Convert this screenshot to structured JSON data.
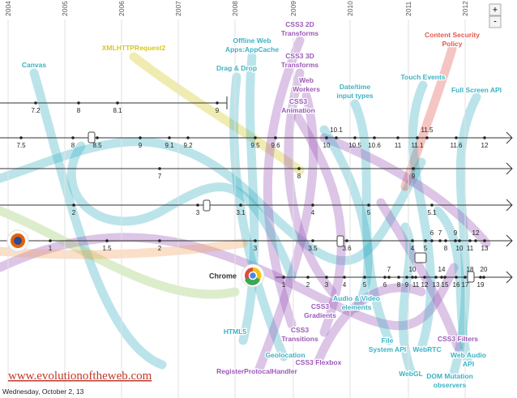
{
  "years": [
    "2004",
    "2005",
    "2006",
    "2007",
    "2008",
    "2009",
    "2010",
    "2011",
    "2012"
  ],
  "zoom": {
    "in": "+",
    "out": "-"
  },
  "features": [
    {
      "lines": [
        "Canvas"
      ]
    },
    {
      "lines": [
        "XMLHTTPRequest2"
      ]
    },
    {
      "lines": [
        "Offline Web",
        "Apps:AppCache"
      ]
    },
    {
      "lines": [
        "CSS3 2D",
        "Transforms"
      ]
    },
    {
      "lines": [
        "CSS3 3D",
        "Transforms"
      ]
    },
    {
      "lines": [
        "Drag & Drop"
      ]
    },
    {
      "lines": [
        "Web",
        "Workers"
      ]
    },
    {
      "lines": [
        "CSS3",
        "Animation"
      ]
    },
    {
      "lines": [
        "Date/time",
        "input types"
      ]
    },
    {
      "lines": [
        "Content Security",
        "Policy"
      ]
    },
    {
      "lines": [
        "Touch Events"
      ]
    },
    {
      "lines": [
        "Full Screen API"
      ]
    },
    {
      "lines": [
        "HTML5"
      ]
    },
    {
      "lines": [
        "Geolocation"
      ]
    },
    {
      "lines": [
        "RegisterProtocalHandler"
      ]
    },
    {
      "lines": [
        "CSS3",
        "Transitions"
      ]
    },
    {
      "lines": [
        "CSS3",
        "Gradients"
      ]
    },
    {
      "lines": [
        "CSS3 Flexbox"
      ]
    },
    {
      "lines": [
        "Audio & Video",
        "elements"
      ]
    },
    {
      "lines": [
        "File",
        "System API"
      ]
    },
    {
      "lines": [
        "WebGL"
      ]
    },
    {
      "lines": [
        "WebRTC"
      ]
    },
    {
      "lines": [
        "DOM Mutation",
        "observers"
      ]
    },
    {
      "lines": [
        "CSS3 Filters"
      ]
    },
    {
      "lines": [
        "Web Audio",
        "API"
      ]
    }
  ],
  "tracks": [
    {
      "versions": [
        "7.2",
        "8",
        "8.1",
        "9"
      ]
    },
    {
      "versions": [
        "7.5",
        "8",
        "8.5",
        "9",
        "9.1",
        "9.2",
        "9.5",
        "9.6",
        "10",
        "10.1",
        "10.5",
        "10.6",
        "11",
        "11.1",
        "11.5",
        "11.6",
        "12"
      ]
    },
    {
      "versions": [
        "7",
        "8",
        "9"
      ]
    },
    {
      "versions": [
        "2",
        "3",
        "3.1",
        "4",
        "5",
        "5.1"
      ]
    },
    {
      "versions": [
        "1",
        "1.5",
        "2",
        "3",
        "3.5",
        "3.6",
        "4",
        "5",
        "6",
        "7",
        "8",
        "9",
        "10",
        "11",
        "12",
        "13"
      ]
    },
    {
      "versions": [
        "1",
        "2",
        "3",
        "4",
        "5",
        "6",
        "7",
        "8",
        "9",
        "10",
        "11",
        "12",
        "13",
        "14",
        "15",
        "16",
        "17",
        "18",
        "19",
        "20"
      ]
    }
  ],
  "chrome_label": "Chrome",
  "url": "www.evolutionoftheweb.com",
  "footer_date": "Wednesday, October 2, 13"
}
